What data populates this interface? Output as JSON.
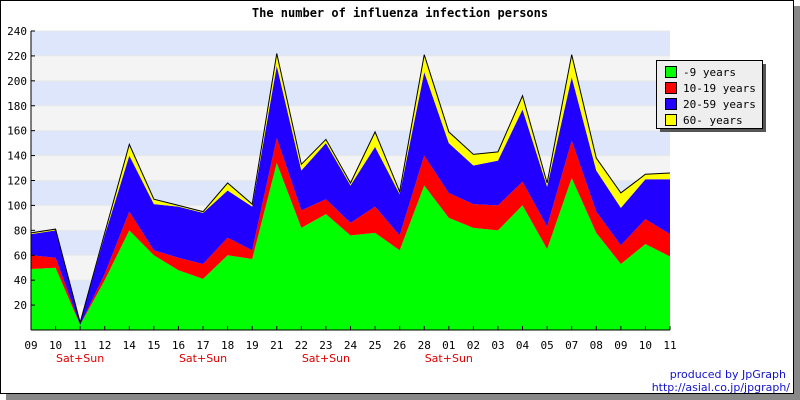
{
  "chart_data": {
    "type": "area",
    "stacked": true,
    "title": "The number of influenza infection persons",
    "xlabel": "",
    "ylabel": "",
    "ylim": [
      0,
      240
    ],
    "y_ticks": [
      20,
      40,
      60,
      80,
      100,
      120,
      140,
      160,
      180,
      200,
      220,
      240
    ],
    "grid": "horizontal bands",
    "legend_position": "top-right",
    "categories": [
      "09",
      "10",
      "11",
      "12",
      "14",
      "15",
      "16",
      "17",
      "18",
      "19",
      "21",
      "22",
      "23",
      "24",
      "25",
      "26",
      "28",
      "01",
      "02",
      "03",
      "04",
      "05",
      "07",
      "08",
      "09",
      "10",
      "11"
    ],
    "weekend_labels": [
      {
        "category_index": 2,
        "text": "Sat+Sun"
      },
      {
        "category_index": 7,
        "text": "Sat+Sun"
      },
      {
        "category_index": 12,
        "text": "Sat+Sun"
      },
      {
        "category_index": 17,
        "text": "Sat+Sun"
      }
    ],
    "series": [
      {
        "name": "-9 years",
        "color": "#00ff00",
        "values": [
          49,
          50,
          4,
          40,
          80,
          60,
          48,
          41,
          60,
          57,
          134,
          82,
          93,
          76,
          78,
          64,
          116,
          90,
          82,
          80,
          100,
          65,
          122,
          78,
          53,
          69,
          59
        ]
      },
      {
        "name": "10-19 years",
        "color": "#ff0000",
        "values": [
          11,
          8,
          0,
          5,
          15,
          4,
          10,
          12,
          14,
          7,
          20,
          14,
          12,
          10,
          21,
          12,
          24,
          20,
          19,
          20,
          19,
          18,
          30,
          17,
          15,
          20,
          18
        ]
      },
      {
        "name": "20-59 years",
        "color": "#2200ff",
        "values": [
          17,
          22,
          2,
          31,
          45,
          37,
          41,
          41,
          38,
          35,
          58,
          32,
          45,
          30,
          48,
          33,
          67,
          40,
          31,
          36,
          58,
          32,
          51,
          33,
          30,
          32,
          44
        ]
      },
      {
        "name": "60- years",
        "color": "#ffff00",
        "values": [
          1,
          1,
          0,
          2,
          9,
          4,
          1,
          1,
          6,
          2,
          10,
          5,
          3,
          2,
          12,
          2,
          14,
          9,
          9,
          7,
          11,
          3,
          18,
          10,
          12,
          4,
          5
        ]
      }
    ]
  },
  "footer": {
    "credit_line1": "produced by JpGraph",
    "credit_line2": "http://asial.co.jp/jpgraph/"
  }
}
